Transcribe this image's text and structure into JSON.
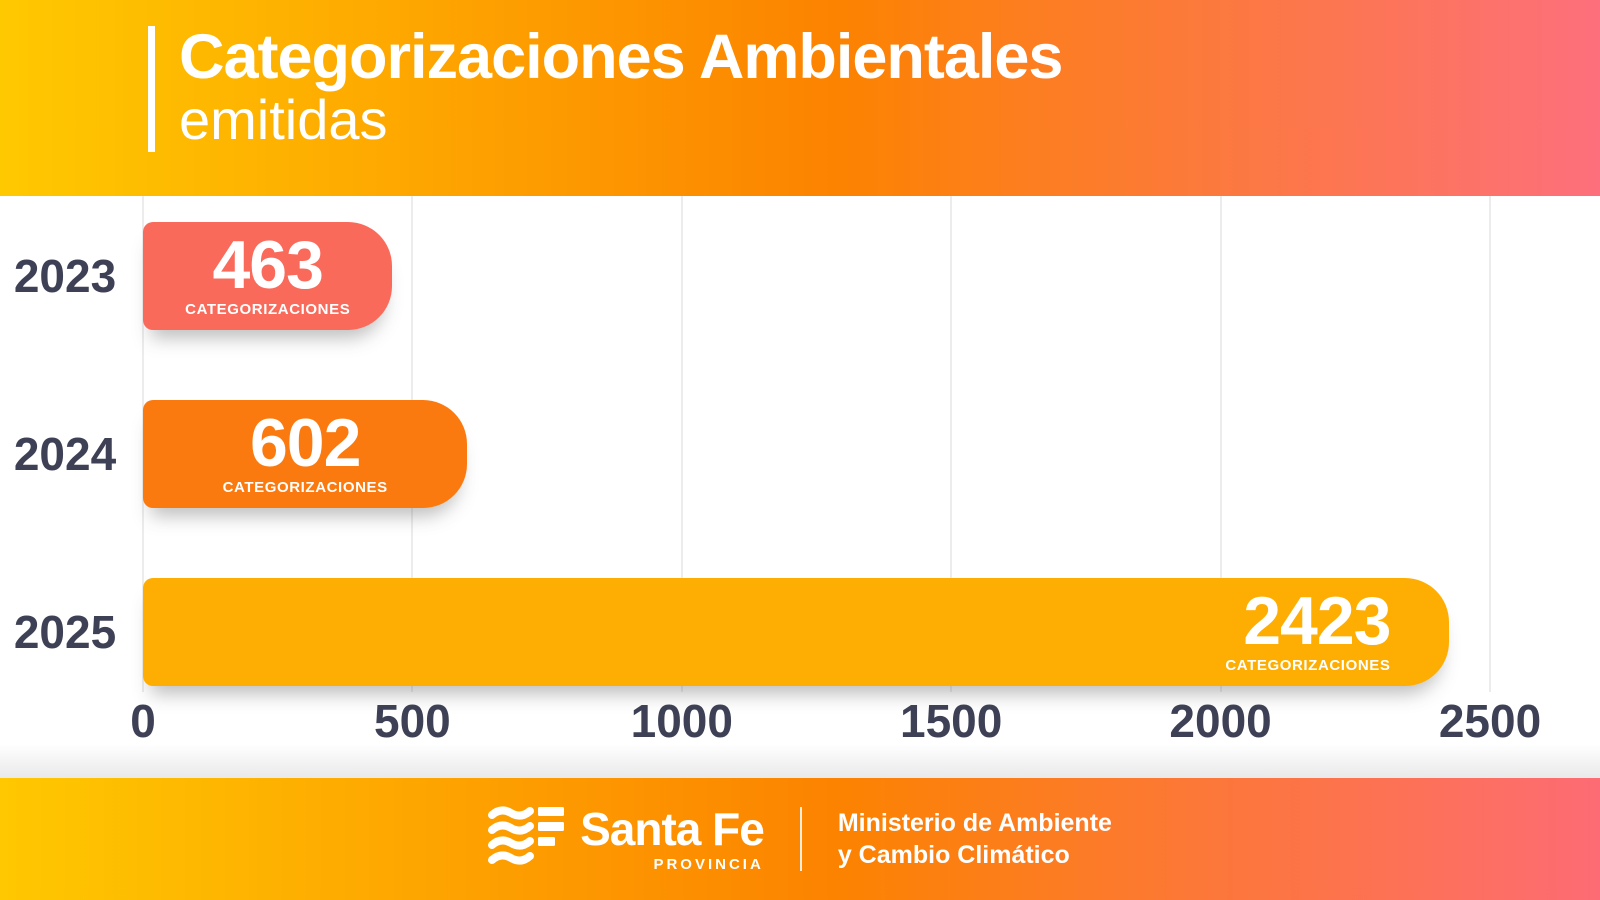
{
  "header": {
    "title_bold": "Categorizaciones Ambientales",
    "title_light": "emitidas"
  },
  "chart_data": {
    "type": "bar",
    "orientation": "horizontal",
    "title": "Categorizaciones Ambientales emitidas",
    "categories": [
      "2023",
      "2024",
      "2025"
    ],
    "values": [
      463,
      602,
      2423
    ],
    "unit_label": "CATEGORIZACIONES",
    "bar_colors": [
      "#fa6a5b",
      "#fb7a10",
      "#feae02"
    ],
    "value_label_align": [
      "center",
      "center",
      "right"
    ],
    "xlim": [
      0,
      2500
    ],
    "x_ticks": [
      0,
      500,
      1000,
      1500,
      2000,
      2500
    ],
    "grid": true,
    "axis_label_color": "#3e4156",
    "legend": "none"
  },
  "footer": {
    "logo_name": "Santa Fe",
    "logo_sub": "PROVINCIA",
    "ministry_line1": "Ministerio de Ambiente",
    "ministry_line2": "y Cambio Climático"
  },
  "colors": {
    "gradient_start": "#ffc900",
    "gradient_mid": "#fc8300",
    "gradient_end": "#fd6f7c",
    "text_dark": "#3e4156",
    "text_light": "#ffffff"
  }
}
